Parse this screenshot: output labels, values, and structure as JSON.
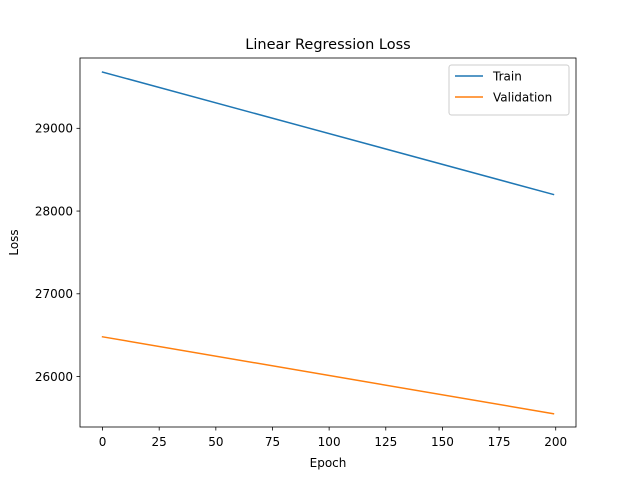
{
  "chart_data": {
    "type": "line",
    "title": "Linear Regression Loss",
    "xlabel": "Epoch",
    "ylabel": "Loss",
    "xlim": [
      -9.95,
      208.95
    ],
    "ylim": [
      25390,
      29850
    ],
    "xticks": [
      0,
      25,
      50,
      75,
      100,
      125,
      150,
      175,
      200
    ],
    "yticks": [
      26000,
      27000,
      28000,
      29000
    ],
    "grid": false,
    "legend_position": "upper right",
    "series": [
      {
        "name": "Train",
        "color": "#1f77b4",
        "x": [
          0,
          199
        ],
        "y": [
          29680,
          28200
        ]
      },
      {
        "name": "Validation",
        "color": "#ff7f0e",
        "x": [
          0,
          199
        ],
        "y": [
          26480,
          25550
        ]
      }
    ]
  }
}
